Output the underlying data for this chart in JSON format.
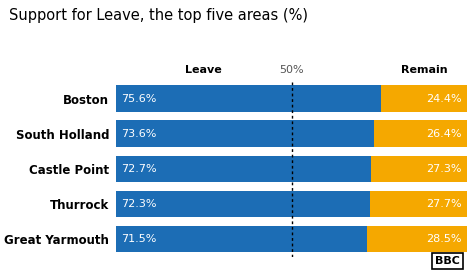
{
  "title": "Support for Leave, the top five areas (%)",
  "areas": [
    "Boston",
    "South Holland",
    "Castle Point",
    "Thurrock",
    "Great Yarmouth"
  ],
  "leave": [
    75.6,
    73.6,
    72.7,
    72.3,
    71.5
  ],
  "remain": [
    24.4,
    26.4,
    27.3,
    27.7,
    28.5
  ],
  "leave_color": "#1c6db5",
  "remain_color": "#f5a800",
  "bg_color": "#ffffff",
  "title_fontsize": 10.5,
  "label_fontsize": 8.0,
  "tick_fontsize": 8.0,
  "area_fontsize": 8.5,
  "header_leave": "Leave",
  "header_remain": "Remain",
  "header_50": "50%",
  "bbc_text": "BBC"
}
